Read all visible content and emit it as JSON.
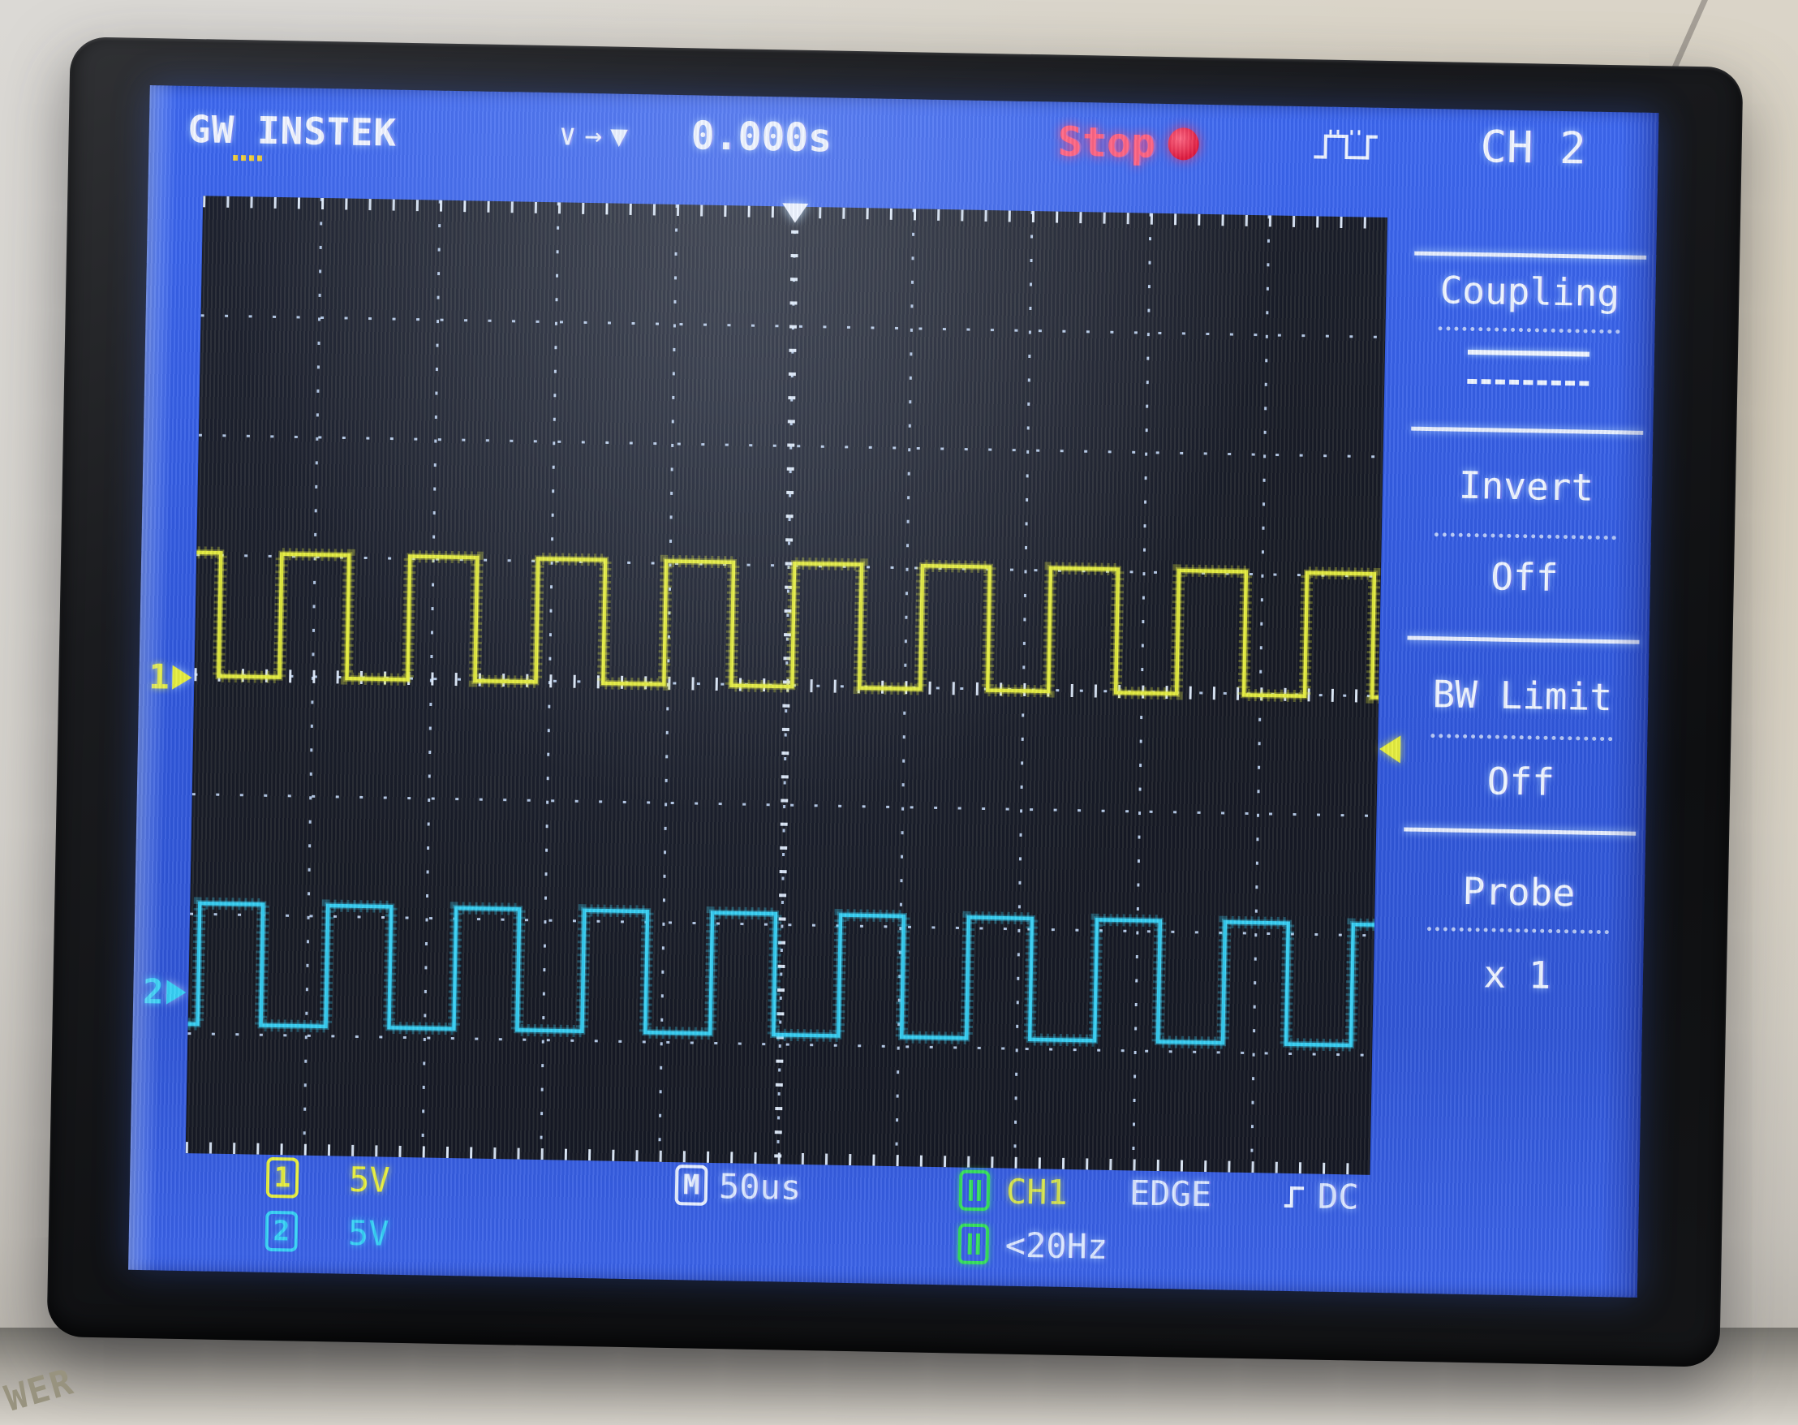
{
  "brand": {
    "g": "G",
    "w": "W",
    "rest": "INSTEK"
  },
  "topbar": {
    "ind1": "∨",
    "ind2": "→",
    "ind3": "▼",
    "delay": "0.000s",
    "state": "Stop",
    "channel": "CH 2"
  },
  "menu": {
    "items": [
      {
        "label": "Coupling",
        "value_icon": "dc-coupling-icon"
      },
      {
        "label": "Invert",
        "value": "Off"
      },
      {
        "label": "BW Limit",
        "value": "Off"
      },
      {
        "label": "Probe",
        "value": "x 1"
      }
    ]
  },
  "status": {
    "ch1_badge": "1",
    "ch1_scale": "5V",
    "ch2_badge": "2",
    "ch2_scale": "5V",
    "time_badge": "M",
    "timebase": "50us",
    "trig_source": "CH1",
    "trig_type": "EDGE",
    "trig_coupling": "DC",
    "trig_freq": "<20Hz"
  },
  "chassis": {
    "label": "WER"
  },
  "chart_data": {
    "type": "line",
    "title": "Dual-channel square waves on oscilloscope graticule",
    "x_units": "time",
    "timebase_per_div": "50us",
    "divisions_x": 10,
    "divisions_y": 8,
    "grid": "dotted, center axes with minor ticks, edge ticks top/bottom",
    "trigger": {
      "position_div": 5.0,
      "level_div_from_top": 4.44,
      "delay": "0.000s",
      "source": "CH1",
      "type": "EDGE"
    },
    "series": [
      {
        "name": "CH1",
        "color": "#e7ef3d",
        "volts_per_div": "5V",
        "shape": "square",
        "period_div": 1.082,
        "high_width_div": 0.568,
        "first_rise_div": 0.72,
        "high_level_div_from_top": 2.98,
        "low_level_div_from_top": 4.01,
        "ground_marker_div_from_top": 4.05,
        "amplitude_est": "~5V (1 div)"
      },
      {
        "name": "CH2",
        "color": "#37d2f5",
        "volts_per_div": "5V",
        "shape": "square",
        "period_div": 1.082,
        "high_width_div": 0.534,
        "first_rise_div": 1.164,
        "high_level_div_from_top": 5.91,
        "low_level_div_from_top": 6.92,
        "ground_marker_div_from_top": 6.68,
        "amplitude_est": "~5V (1 div)"
      }
    ]
  }
}
